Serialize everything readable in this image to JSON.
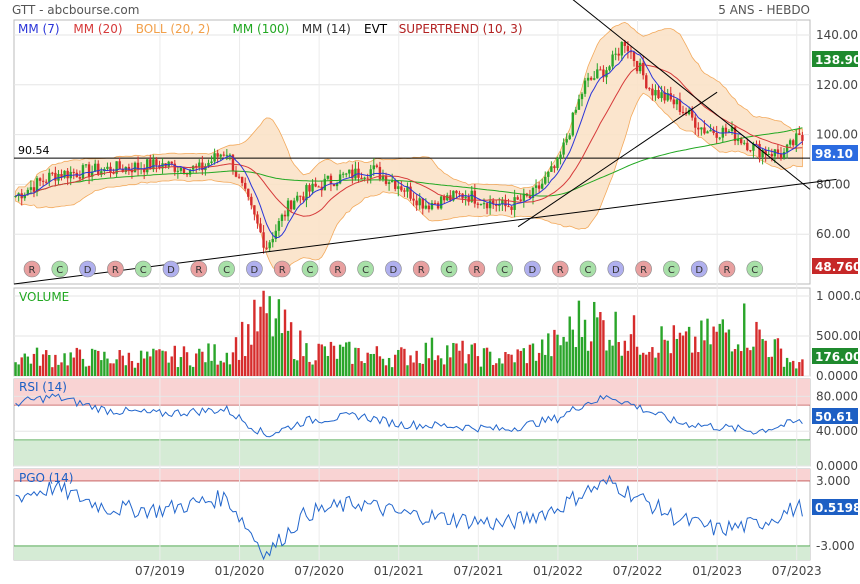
{
  "header": {
    "source": "GTT - abcbourse.com",
    "period": "5 ANS - HEBDO"
  },
  "legend": [
    {
      "label": "MM (7)",
      "color": "#2b35d8"
    },
    {
      "label": "MM (20)",
      "color": "#d63a3a"
    },
    {
      "label": "BOLL (20, 2)",
      "color": "#f2a04a"
    },
    {
      "label": "MM (100)",
      "color": "#22a822"
    },
    {
      "label": "MM (14)",
      "color": "#333333"
    },
    {
      "label": "EVT",
      "color": "#000000"
    },
    {
      "label": "SUPERTREND (10, 3)",
      "color": "#b22222"
    }
  ],
  "colors": {
    "up": "#2aa52a",
    "down": "#d62c2c",
    "boll_fill": "#fbe3c8",
    "rsi": "#2266cc",
    "pgo": "#2266cc",
    "over_band": "#f9d3d3",
    "under_band": "#d5ebd5"
  },
  "chart_data": [
    {
      "type": "candlestick",
      "panel": "price",
      "y_ticks": [
        "140.00",
        "120.00",
        "100.00",
        "80.00",
        "60.00"
      ],
      "ylim": [
        40,
        146
      ],
      "reference_level": {
        "label": "90.54",
        "value": 90.54
      },
      "last_price": "98.10",
      "last_price_color": "#2b6be0",
      "top_value": "138.90",
      "top_value_color": "#1f8a2e",
      "low_value": "48.760",
      "low_value_color": "#c62828",
      "trendlines": [
        {
          "from": [
            "2018-08",
            40
          ],
          "to": [
            "2023-10",
            82
          ]
        },
        {
          "from": [
            "2021-10",
            63
          ],
          "to": [
            "2023-01",
            117
          ]
        },
        {
          "from": [
            "2022-01",
            159
          ],
          "to": [
            "2023-08",
            78
          ]
        }
      ],
      "weekly_close_anchors": [
        [
          "2018-08",
          75
        ],
        [
          "2018-11",
          84
        ],
        [
          "2019-03",
          86
        ],
        [
          "2019-07",
          88
        ],
        [
          "2019-10",
          86
        ],
        [
          "2019-12",
          94
        ],
        [
          "2020-03",
          55
        ],
        [
          "2020-05",
          74
        ],
        [
          "2020-08",
          82
        ],
        [
          "2020-11",
          86
        ],
        [
          "2021-01",
          80
        ],
        [
          "2021-03",
          72
        ],
        [
          "2021-06",
          76
        ],
        [
          "2021-09",
          71
        ],
        [
          "2021-11",
          75
        ],
        [
          "2022-01",
          88
        ],
        [
          "2022-03",
          120
        ],
        [
          "2022-05",
          128
        ],
        [
          "2022-06",
          138
        ],
        [
          "2022-08",
          118
        ],
        [
          "2022-10",
          112
        ],
        [
          "2022-12",
          102
        ],
        [
          "2023-02",
          101
        ],
        [
          "2023-04",
          94
        ],
        [
          "2023-06",
          92
        ],
        [
          "2023-07",
          98
        ]
      ],
      "signals": [
        "R",
        "C",
        "D",
        "R",
        "C",
        "D",
        "R",
        "C",
        "D",
        "R",
        "C",
        "R",
        "C",
        "D",
        "R",
        "C",
        "R",
        "C",
        "D",
        "R",
        "C",
        "D",
        "R",
        "C",
        "D",
        "R",
        "C"
      ]
    },
    {
      "type": "bar",
      "panel": "volume",
      "title": "VOLUME",
      "y_ticks": [
        "1 000.0K",
        "500.00K",
        "0.0000"
      ],
      "ylim": [
        0,
        1100000
      ],
      "last_value": "176.00K",
      "last_value_color": "#1f8a2e",
      "volume_anchors": [
        [
          "2018-08",
          300000
        ],
        [
          "2019-06",
          280000
        ],
        [
          "2019-12",
          350000
        ],
        [
          "2020-03",
          950000
        ],
        [
          "2020-06",
          400000
        ],
        [
          "2021-01",
          300000
        ],
        [
          "2021-04",
          420000
        ],
        [
          "2021-09",
          260000
        ],
        [
          "2022-01",
          500000
        ],
        [
          "2022-03",
          900000
        ],
        [
          "2022-07",
          600000
        ],
        [
          "2022-11",
          500000
        ],
        [
          "2023-03",
          800000
        ],
        [
          "2023-07",
          176000
        ]
      ]
    },
    {
      "type": "line",
      "panel": "rsi",
      "title": "RSI (14)",
      "y_ticks": [
        "80.000",
        "40.000",
        "0.0000"
      ],
      "ylim": [
        0,
        100
      ],
      "upper_band": [
        70,
        100
      ],
      "lower_band": [
        0,
        30
      ],
      "last_value": "50.61",
      "last_value_color": "#1d5fc4",
      "rsi_anchors": [
        [
          "2018-08",
          72
        ],
        [
          "2018-11",
          80
        ],
        [
          "2019-03",
          64
        ],
        [
          "2019-07",
          60
        ],
        [
          "2019-12",
          65
        ],
        [
          "2020-03",
          35
        ],
        [
          "2020-06",
          52
        ],
        [
          "2020-10",
          58
        ],
        [
          "2021-01",
          48
        ],
        [
          "2021-05",
          46
        ],
        [
          "2021-09",
          42
        ],
        [
          "2022-01",
          55
        ],
        [
          "2022-03",
          72
        ],
        [
          "2022-05",
          80
        ],
        [
          "2022-07",
          68
        ],
        [
          "2022-10",
          50
        ],
        [
          "2023-01",
          45
        ],
        [
          "2023-04",
          40
        ],
        [
          "2023-07",
          50.61
        ]
      ]
    },
    {
      "type": "line",
      "panel": "pgo",
      "title": "PGO (14)",
      "y_ticks": [
        "3.000",
        "-3.000"
      ],
      "ylim": [
        -4.3,
        4.1
      ],
      "upper_band": [
        3,
        4.1
      ],
      "lower_band": [
        -4.3,
        -3
      ],
      "last_value": "0.5198",
      "last_value_color": "#1d5fc4",
      "pgo_anchors": [
        [
          "2018-08",
          1.5
        ],
        [
          "2018-11",
          2.4
        ],
        [
          "2019-03",
          0.5
        ],
        [
          "2019-07",
          0.3
        ],
        [
          "2019-12",
          1.5
        ],
        [
          "2020-03",
          -3.8
        ],
        [
          "2020-06",
          0.0
        ],
        [
          "2020-10",
          1.0
        ],
        [
          "2021-01",
          0.0
        ],
        [
          "2021-05",
          -0.5
        ],
        [
          "2021-09",
          -1.0
        ],
        [
          "2022-01",
          0.5
        ],
        [
          "2022-03",
          2.0
        ],
        [
          "2022-05",
          2.9
        ],
        [
          "2022-07",
          1.5
        ],
        [
          "2022-10",
          -0.5
        ],
        [
          "2023-01",
          -1.5
        ],
        [
          "2023-04",
          -1.0
        ],
        [
          "2023-07",
          0.5198
        ]
      ]
    }
  ],
  "x_axis": {
    "ticks": [
      {
        "label": "07/2019",
        "date": "2019-07"
      },
      {
        "label": "01/2020",
        "date": "2020-01"
      },
      {
        "label": "07/2020",
        "date": "2020-07"
      },
      {
        "label": "01/2021",
        "date": "2021-01"
      },
      {
        "label": "07/2021",
        "date": "2021-07"
      },
      {
        "label": "01/2022",
        "date": "2022-01"
      },
      {
        "label": "07/2022",
        "date": "2022-07"
      },
      {
        "label": "01/2023",
        "date": "2023-01"
      },
      {
        "label": "07/2023",
        "date": "2023-07"
      }
    ],
    "range": [
      "2018-08",
      "2023-08"
    ]
  }
}
